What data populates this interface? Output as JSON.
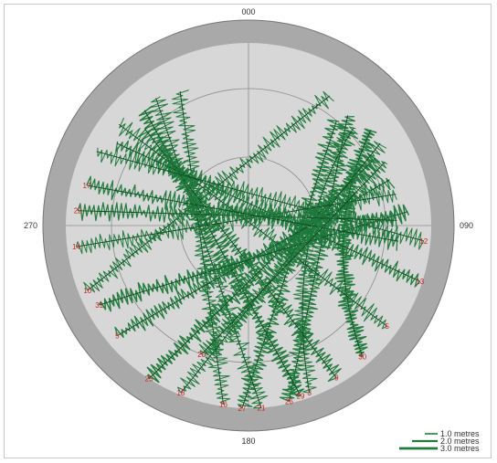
{
  "chart_data": {
    "type": "polar-sky-plot",
    "compass_labels": [
      {
        "name": "north",
        "text": "000",
        "azimuth": 0
      },
      {
        "name": "east",
        "text": "090",
        "azimuth": 90
      },
      {
        "name": "south",
        "text": "180",
        "azimuth": 180
      },
      {
        "name": "west",
        "text": "270",
        "azimuth": 270
      }
    ],
    "elevation_rings_deg": [
      0,
      30,
      60
    ],
    "excluded_band_below_elevation_deg": 10,
    "colors": {
      "outer_band": "#a9a9a9",
      "plot_area": "#d7d7d7",
      "grid": "#8c8c8c",
      "track": "#1f7a3c",
      "track_label": "#d22020"
    },
    "tracks": [
      {
        "label": "10",
        "start": {
          "az": 248,
          "el": 14
        },
        "end": {
          "az": 32,
          "el": 23
        },
        "peak_el": 52,
        "rate": 1.0
      },
      {
        "label": "16",
        "start": {
          "az": 188,
          "el": 11
        },
        "end": {
          "az": 333,
          "el": 24
        },
        "peak_el": 50,
        "rate": 1.0
      },
      {
        "label": "27",
        "start": {
          "az": 182,
          "el": 10
        },
        "end": {
          "az": 40,
          "el": 30
        },
        "peak_el": 55,
        "rate": 2.0
      },
      {
        "label": "21",
        "start": {
          "az": 176,
          "el": 10
        },
        "end": {
          "az": 324,
          "el": 21
        },
        "peak_el": 58,
        "rate": 1.0
      },
      {
        "label": "26",
        "start": {
          "az": 167,
          "el": 11
        },
        "end": {
          "az": 42,
          "el": 25
        },
        "peak_el": 50,
        "rate": 2.0
      },
      {
        "label": "29",
        "start": {
          "az": 163,
          "el": 12
        },
        "end": {
          "az": 318,
          "el": 22
        },
        "peak_el": 55,
        "rate": 3.0
      },
      {
        "label": "3",
        "start": {
          "az": 160,
          "el": 12
        },
        "end": {
          "az": 47,
          "el": 27
        },
        "peak_el": 62,
        "rate": 1.0
      },
      {
        "label": "9",
        "start": {
          "az": 150,
          "el": 13
        },
        "end": {
          "az": 313,
          "el": 28
        },
        "peak_el": 52,
        "rate": 2.0
      },
      {
        "label": "30",
        "start": {
          "az": 139,
          "el": 14
        },
        "end": {
          "az": 52,
          "el": 22
        },
        "peak_el": 48,
        "rate": 3.0
      },
      {
        "label": "5",
        "start": {
          "az": 126,
          "el": 15
        },
        "end": {
          "az": 308,
          "el": 18
        },
        "peak_el": 50,
        "rate": 1.0
      },
      {
        "label": "13",
        "start": {
          "az": 108,
          "el": 11
        },
        "end": {
          "az": 302,
          "el": 22
        },
        "peak_el": 44,
        "rate": 2.0
      },
      {
        "label": "12",
        "start": {
          "az": 95,
          "el": 13
        },
        "end": {
          "az": 296,
          "el": 16
        },
        "peak_el": 38,
        "rate": 1.0
      },
      {
        "label": "25",
        "start": {
          "az": 213,
          "el": 10
        },
        "end": {
          "az": 62,
          "el": 27
        },
        "peak_el": 55,
        "rate": 3.0
      },
      {
        "label": "18",
        "start": {
          "az": 202,
          "el": 11
        },
        "end": {
          "az": 58,
          "el": 22
        },
        "peak_el": 50,
        "rate": 1.0
      },
      {
        "label": "5",
        "start": {
          "az": 230,
          "el": 15
        },
        "end": {
          "az": 72,
          "el": 25
        },
        "peak_el": 48,
        "rate": 2.0
      },
      {
        "label": "31",
        "start": {
          "az": 242,
          "el": 16
        },
        "end": {
          "az": 85,
          "el": 20
        },
        "peak_el": 42,
        "rate": 3.0
      },
      {
        "label": "14",
        "start": {
          "az": 263,
          "el": 14
        },
        "end": {
          "az": 78,
          "el": 24
        },
        "peak_el": 44,
        "rate": 1.0
      },
      {
        "label": "22",
        "start": {
          "az": 275,
          "el": 15
        },
        "end": {
          "az": 88,
          "el": 25
        },
        "peak_el": 40,
        "rate": 2.0
      },
      {
        "label": "17",
        "start": {
          "az": 284,
          "el": 17
        },
        "end": {
          "az": 96,
          "el": 24
        },
        "peak_el": 38,
        "rate": 2.0
      },
      {
        "label": "20",
        "start": {
          "az": 200,
          "el": 30
        },
        "end": {
          "az": 65,
          "el": 24
        },
        "peak_el": 52,
        "rate": 1.0
      }
    ],
    "legend": {
      "placement": "bottom-right",
      "entries": [
        {
          "label": "1.0 metres",
          "weight": 1
        },
        {
          "label": "2.0 metres",
          "weight": 2
        },
        {
          "label": "3.0 metres",
          "weight": 3
        }
      ]
    }
  }
}
